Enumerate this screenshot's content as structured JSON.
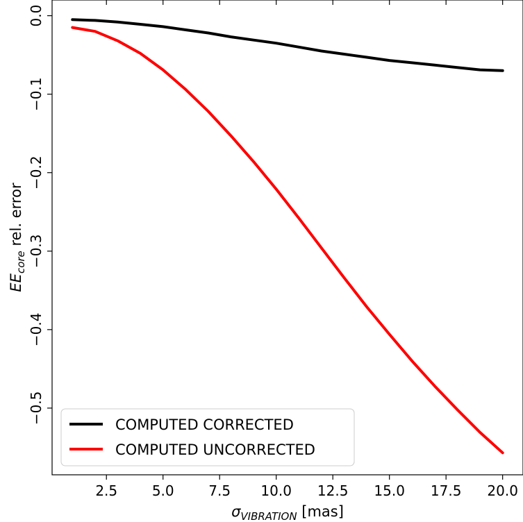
{
  "chart_data": {
    "type": "line",
    "xlabel": {
      "symbol": "σ",
      "subscript": "VIBRATION",
      "suffix": " [mas]"
    },
    "ylabel": {
      "symbol": "EE",
      "subscript": "core",
      "suffix": " rel. error"
    },
    "xlim": [
      0.1,
      20.9
    ],
    "ylim": [
      -0.585,
      0.02
    ],
    "xticks": [
      "2.5",
      "5.0",
      "7.5",
      "10.0",
      "12.5",
      "15.0",
      "17.5",
      "20.0"
    ],
    "xtick_values": [
      2.5,
      5.0,
      7.5,
      10.0,
      12.5,
      15.0,
      17.5,
      20.0
    ],
    "yticks": [
      "0.0",
      "−0.1",
      "−0.2",
      "−0.3",
      "−0.4",
      "−0.5"
    ],
    "ytick_values": [
      0.0,
      -0.1,
      -0.2,
      -0.3,
      -0.4,
      -0.5
    ],
    "legend_position": "lower-left",
    "grid": false,
    "x": [
      1,
      2,
      3,
      4,
      5,
      6,
      7,
      8,
      9,
      10,
      11,
      12,
      13,
      14,
      15,
      16,
      17,
      18,
      19,
      20
    ],
    "series": [
      {
        "name": "COMPUTED CORRECTED",
        "color": "#000000",
        "values": [
          -0.005,
          -0.006,
          -0.008,
          -0.011,
          -0.014,
          -0.018,
          -0.022,
          -0.027,
          -0.031,
          -0.035,
          -0.04,
          -0.045,
          -0.049,
          -0.053,
          -0.057,
          -0.06,
          -0.063,
          -0.066,
          -0.069,
          -0.07
        ]
      },
      {
        "name": "COMPUTED UNCORRECTED",
        "color": "#ff0000",
        "values": [
          -0.015,
          -0.02,
          -0.032,
          -0.048,
          -0.069,
          -0.094,
          -0.122,
          -0.153,
          -0.186,
          -0.221,
          -0.258,
          -0.296,
          -0.334,
          -0.371,
          -0.406,
          -0.44,
          -0.472,
          -0.502,
          -0.531,
          -0.557
        ]
      }
    ]
  }
}
